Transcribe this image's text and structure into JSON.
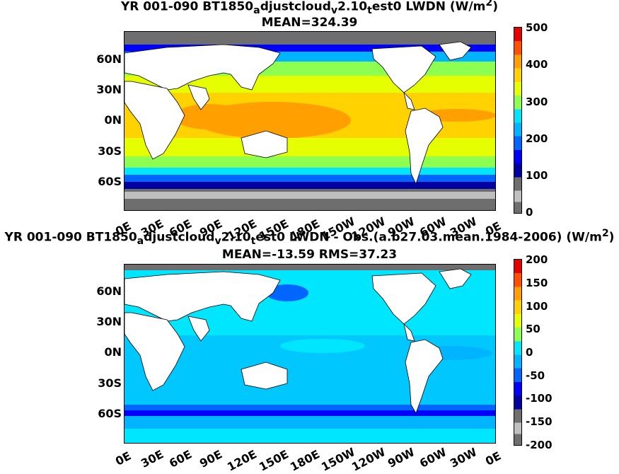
{
  "panels": [
    {
      "title_parts": [
        "YR 001-090 BT1850",
        "a",
        "djustcloud",
        "v",
        "2.10",
        "t",
        "est0 LWDN (W/m",
        "2",
        ")"
      ],
      "stats": "MEAN=324.39",
      "colorbar": {
        "labels": [
          "500",
          "400",
          "300",
          "200",
          "100",
          "0"
        ],
        "missing_color": "#bfbfbf"
      }
    },
    {
      "title_parts": [
        "YR 001-090 BT1850",
        "a",
        "djustcloud",
        "v",
        "2.10",
        "t",
        "est0 LWDN - Obs.(a.b27.03.mean.1984-2006) (W/m",
        "2",
        ")"
      ],
      "stats": "MEAN=-13.59 RMS=37.23",
      "colorbar": {
        "labels": [
          "200",
          "150",
          "100",
          "50",
          "0",
          "-50",
          "-100",
          "-150",
          "-200"
        ],
        "missing_color": "#bfbfbf"
      }
    }
  ],
  "lat_labels": [
    "60N",
    "30N",
    "0N",
    "30S",
    "60S"
  ],
  "lon_labels": [
    "0E",
    "30E",
    "60E",
    "90E",
    "120E",
    "150E",
    "180E",
    "150W",
    "120W",
    "90W",
    "60W",
    "30W",
    "0E"
  ],
  "colors": {
    "land": "#ffffff",
    "missing": "#6e6e6e",
    "scale": [
      "#6e6e6e",
      "#0000a0",
      "#0000ff",
      "#0066ff",
      "#00b4ff",
      "#00e6ff",
      "#8cff50",
      "#e6ff00",
      "#ffd200",
      "#ffa000",
      "#ff5000",
      "#e60000"
    ]
  }
}
